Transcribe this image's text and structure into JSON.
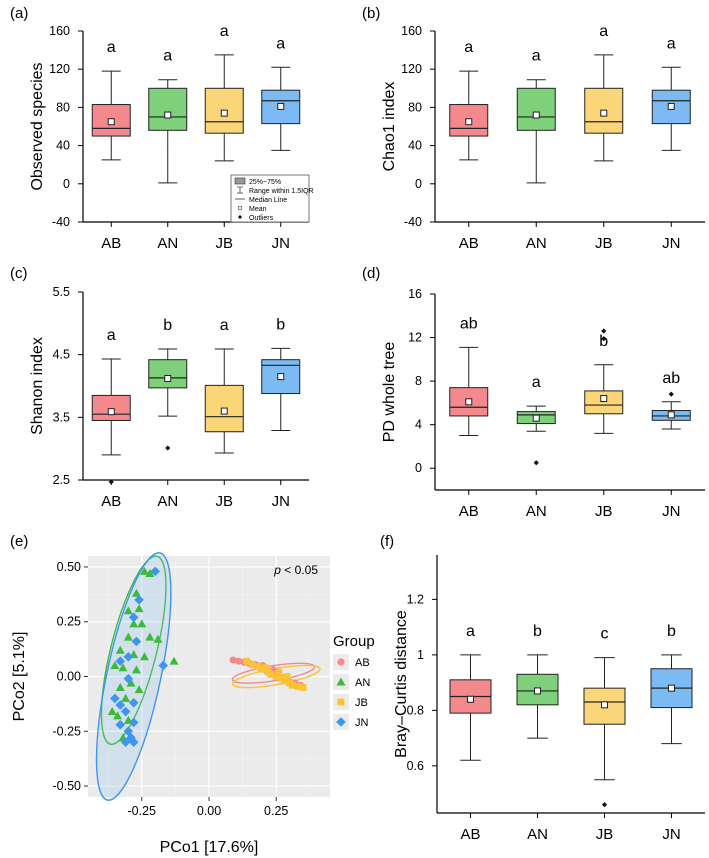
{
  "colors": {
    "AB": "#f4898d",
    "AN": "#7ed07b",
    "JB": "#fbd679",
    "JN": "#7bbaf2",
    "AB_point": "#f4898d",
    "AN_point": "#3cba3a",
    "JB_point": "#fbc232",
    "JN_point": "#3e96ec"
  },
  "chart_data": [
    {
      "type": "boxplot",
      "panel": "(a)",
      "ylabel": "Observed species",
      "ylim": [
        -40,
        160
      ],
      "yticks": [
        -40,
        0,
        40,
        80,
        120,
        160
      ],
      "categories": [
        "AB",
        "AN",
        "JB",
        "JN"
      ],
      "boxes": [
        {
          "group": "AB",
          "whisker_low": 25,
          "q1": 50,
          "median": 58,
          "q3": 83,
          "whisker_high": 118,
          "mean": 65,
          "outliers": [],
          "letter": "a"
        },
        {
          "group": "AN",
          "whisker_low": 1,
          "q1": 56,
          "median": 70,
          "q3": 100,
          "whisker_high": 109,
          "mean": 72,
          "outliers": [],
          "letter": "a"
        },
        {
          "group": "JB",
          "whisker_low": 24,
          "q1": 53,
          "median": 65,
          "q3": 100,
          "whisker_high": 135,
          "mean": 74,
          "outliers": [],
          "letter": "a"
        },
        {
          "group": "JN",
          "whisker_low": 35,
          "q1": 63,
          "median": 87,
          "q3": 98,
          "whisker_high": 122,
          "mean": 81,
          "outliers": [],
          "letter": "a"
        }
      ],
      "legend": {
        "items": [
          "25%~75%",
          "Range within 1.5IQR",
          "Median Line",
          "Mean",
          "Outliers"
        ]
      }
    },
    {
      "type": "boxplot",
      "panel": "(b)",
      "ylabel": "Chao1 index",
      "ylim": [
        -40,
        160
      ],
      "yticks": [
        -40,
        0,
        40,
        80,
        120,
        160
      ],
      "categories": [
        "AB",
        "AN",
        "JB",
        "JN"
      ],
      "boxes": [
        {
          "group": "AB",
          "whisker_low": 25,
          "q1": 50,
          "median": 58,
          "q3": 83,
          "whisker_high": 118,
          "mean": 65,
          "outliers": [],
          "letter": "a"
        },
        {
          "group": "AN",
          "whisker_low": 1,
          "q1": 56,
          "median": 70,
          "q3": 100,
          "whisker_high": 109,
          "mean": 72,
          "outliers": [],
          "letter": "a"
        },
        {
          "group": "JB",
          "whisker_low": 24,
          "q1": 53,
          "median": 65,
          "q3": 100,
          "whisker_high": 135,
          "mean": 74,
          "outliers": [],
          "letter": "a"
        },
        {
          "group": "JN",
          "whisker_low": 35,
          "q1": 63,
          "median": 87,
          "q3": 98,
          "whisker_high": 122,
          "mean": 81,
          "outliers": [],
          "letter": "a"
        }
      ]
    },
    {
      "type": "boxplot",
      "panel": "(c)",
      "ylabel": "Shanon index",
      "ylim": [
        2.5,
        5.5
      ],
      "yticks": [
        2.5,
        3.5,
        4.5,
        5.5
      ],
      "categories": [
        "AB",
        "AN",
        "JB",
        "JN"
      ],
      "boxes": [
        {
          "group": "AB",
          "whisker_low": 2.9,
          "q1": 3.45,
          "median": 3.55,
          "q3": 3.85,
          "whisker_high": 4.43,
          "mean": 3.59,
          "outliers": [
            2.47
          ],
          "letter": "a"
        },
        {
          "group": "AN",
          "whisker_low": 3.52,
          "q1": 3.97,
          "median": 4.13,
          "q3": 4.42,
          "whisker_high": 4.59,
          "mean": 4.12,
          "outliers": [
            3.01
          ],
          "letter": "b"
        },
        {
          "group": "JB",
          "whisker_low": 2.93,
          "q1": 3.27,
          "median": 3.51,
          "q3": 4.01,
          "whisker_high": 4.59,
          "mean": 3.6,
          "outliers": [],
          "letter": "a"
        },
        {
          "group": "JN",
          "whisker_low": 3.29,
          "q1": 3.88,
          "median": 4.33,
          "q3": 4.42,
          "whisker_high": 4.6,
          "mean": 4.15,
          "outliers": [],
          "letter": "b"
        }
      ]
    },
    {
      "type": "boxplot",
      "panel": "(d)",
      "ylabel": "PD whole tree",
      "ylim": [
        -2,
        16
      ],
      "yticks": [
        0,
        4,
        8,
        12,
        16
      ],
      "categories": [
        "AB",
        "AN",
        "JB",
        "JN"
      ],
      "boxes": [
        {
          "group": "AB",
          "whisker_low": 3.0,
          "q1": 4.8,
          "median": 5.6,
          "q3": 7.4,
          "whisker_high": 11.1,
          "mean": 6.1,
          "outliers": [],
          "letter": "ab"
        },
        {
          "group": "AN",
          "whisker_low": 3.4,
          "q1": 4.1,
          "median": 4.9,
          "q3": 5.2,
          "whisker_high": 5.7,
          "mean": 4.6,
          "outliers": [
            0.5
          ],
          "letter": "a"
        },
        {
          "group": "JB",
          "whisker_low": 3.2,
          "q1": 5.0,
          "median": 5.8,
          "q3": 7.1,
          "whisker_high": 9.5,
          "mean": 6.4,
          "outliers": [
            11.9,
            12.6
          ],
          "letter": "b"
        },
        {
          "group": "JN",
          "whisker_low": 3.6,
          "q1": 4.4,
          "median": 4.8,
          "q3": 5.3,
          "whisker_high": 6.1,
          "mean": 4.9,
          "outliers": [
            6.8
          ],
          "letter": "ab"
        }
      ]
    },
    {
      "type": "scatter",
      "panel": "(e)",
      "xlabel": "PCo1 [17.6%]",
      "ylabel": "PCo2 [5.1%]",
      "xlim": [
        -0.45,
        0.45
      ],
      "ylim": [
        -0.55,
        0.55
      ],
      "xticks": [
        -0.25,
        0.0,
        0.25
      ],
      "xtick_labels": [
        "-0.25",
        "0.00",
        "0.25"
      ],
      "yticks": [
        -0.5,
        -0.25,
        0.0,
        0.25,
        0.5
      ],
      "ytick_labels": [
        "-0.50",
        "-0.25",
        "0.00",
        "0.25",
        "0.50"
      ],
      "annotation": "p < 0.05",
      "legend_title": "Group",
      "series": [
        {
          "name": "AB",
          "marker": "circle",
          "points": [
            [
              0.09,
              0.075
            ],
            [
              0.11,
              0.07
            ],
            [
              0.13,
              0.065
            ],
            [
              0.15,
              0.06
            ],
            [
              0.17,
              0.055
            ],
            [
              0.18,
              0.05
            ],
            [
              0.19,
              0.04
            ],
            [
              0.2,
              0.035
            ],
            [
              0.21,
              0.03
            ],
            [
              0.22,
              0.025
            ],
            [
              0.23,
              0.02
            ],
            [
              0.24,
              0.015
            ],
            [
              0.25,
              0.005
            ],
            [
              0.26,
              0.0
            ],
            [
              0.27,
              -0.005
            ],
            [
              0.28,
              -0.01
            ],
            [
              0.29,
              -0.02
            ],
            [
              0.3,
              -0.025
            ],
            [
              0.32,
              -0.03
            ],
            [
              0.34,
              -0.04
            ],
            [
              0.2,
              0.05
            ],
            [
              0.24,
              0.03
            ]
          ]
        },
        {
          "name": "AN",
          "marker": "triangle",
          "points": [
            [
              -0.24,
              0.48
            ],
            [
              -0.22,
              0.47
            ],
            [
              -0.27,
              0.38
            ],
            [
              -0.26,
              0.31
            ],
            [
              -0.3,
              0.3
            ],
            [
              -0.28,
              0.24
            ],
            [
              -0.25,
              0.24
            ],
            [
              -0.3,
              0.18
            ],
            [
              -0.22,
              0.18
            ],
            [
              -0.19,
              0.17
            ],
            [
              -0.33,
              0.12
            ],
            [
              -0.28,
              0.1
            ],
            [
              -0.24,
              0.09
            ],
            [
              -0.35,
              0.05
            ],
            [
              -0.32,
              0.04
            ],
            [
              -0.27,
              0.03
            ],
            [
              -0.29,
              -0.03
            ],
            [
              -0.33,
              -0.05
            ],
            [
              -0.26,
              -0.06
            ],
            [
              -0.31,
              -0.1
            ],
            [
              -0.36,
              -0.16
            ],
            [
              -0.34,
              -0.18
            ],
            [
              -0.3,
              -0.2
            ],
            [
              -0.32,
              -0.28
            ],
            [
              -0.13,
              0.07
            ]
          ]
        },
        {
          "name": "JB",
          "marker": "square",
          "points": [
            [
              0.14,
              0.07
            ],
            [
              0.16,
              0.055
            ],
            [
              0.18,
              0.045
            ],
            [
              0.2,
              0.035
            ],
            [
              0.22,
              0.02
            ],
            [
              0.23,
              0.01
            ],
            [
              0.25,
              0.0
            ],
            [
              0.27,
              -0.01
            ],
            [
              0.28,
              -0.02
            ],
            [
              0.3,
              -0.03
            ],
            [
              0.31,
              -0.04
            ],
            [
              0.33,
              -0.045
            ],
            [
              0.35,
              -0.05
            ],
            [
              0.26,
              0.02
            ],
            [
              0.29,
              0.0
            ],
            [
              0.21,
              0.04
            ]
          ]
        },
        {
          "name": "JN",
          "marker": "diamond",
          "points": [
            [
              -0.2,
              0.48
            ],
            [
              -0.26,
              0.35
            ],
            [
              -0.28,
              0.27
            ],
            [
              -0.27,
              0.16
            ],
            [
              -0.3,
              0.09
            ],
            [
              -0.33,
              0.07
            ],
            [
              -0.3,
              -0.01
            ],
            [
              -0.35,
              -0.1
            ],
            [
              -0.28,
              -0.12
            ],
            [
              -0.33,
              -0.13
            ],
            [
              -0.31,
              -0.16
            ],
            [
              -0.28,
              -0.21
            ],
            [
              -0.33,
              -0.22
            ],
            [
              -0.3,
              -0.25
            ],
            [
              -0.29,
              -0.28
            ],
            [
              -0.31,
              -0.3
            ],
            [
              -0.28,
              -0.3
            ],
            [
              -0.17,
              0.05
            ]
          ]
        }
      ],
      "ellipses": [
        {
          "group": "AB",
          "center": [
            0.24,
            0.015
          ],
          "rx": 0.155,
          "ry": 0.028,
          "angle_deg": -9,
          "filled": false
        },
        {
          "group": "JB",
          "center": [
            0.25,
            0.0
          ],
          "rx": 0.165,
          "ry": 0.03,
          "angle_deg": -10,
          "filled": false
        },
        {
          "group": "AN",
          "center": [
            -0.28,
            0.12
          ],
          "rx": 0.36,
          "ry": 0.085,
          "angle_deg": -76,
          "filled": false
        },
        {
          "group": "JN",
          "center": [
            -0.28,
            0.0
          ],
          "rx": 0.47,
          "ry": 0.1,
          "angle_deg": -78,
          "filled": true
        }
      ]
    },
    {
      "type": "boxplot",
      "panel": "(f)",
      "ylabel": "Bray–Curtis distance",
      "ylim": [
        0.43,
        1.36
      ],
      "yticks": [
        0.6,
        0.8,
        1.0,
        1.2
      ],
      "categories": [
        "AB",
        "AN",
        "JB",
        "JN"
      ],
      "boxes": [
        {
          "group": "AB",
          "whisker_low": 0.62,
          "q1": 0.79,
          "median": 0.85,
          "q3": 0.91,
          "whisker_high": 1.0,
          "mean": 0.84,
          "outliers": [],
          "letter": "a"
        },
        {
          "group": "AN",
          "whisker_low": 0.7,
          "q1": 0.82,
          "median": 0.87,
          "q3": 0.93,
          "whisker_high": 1.0,
          "mean": 0.87,
          "outliers": [],
          "letter": "b"
        },
        {
          "group": "JB",
          "whisker_low": 0.55,
          "q1": 0.75,
          "median": 0.83,
          "q3": 0.88,
          "whisker_high": 0.99,
          "mean": 0.82,
          "outliers": [
            0.46
          ],
          "letter": "c"
        },
        {
          "group": "JN",
          "whisker_low": 0.68,
          "q1": 0.81,
          "median": 0.88,
          "q3": 0.95,
          "whisker_high": 1.0,
          "mean": 0.88,
          "outliers": [],
          "letter": "b"
        }
      ]
    }
  ]
}
